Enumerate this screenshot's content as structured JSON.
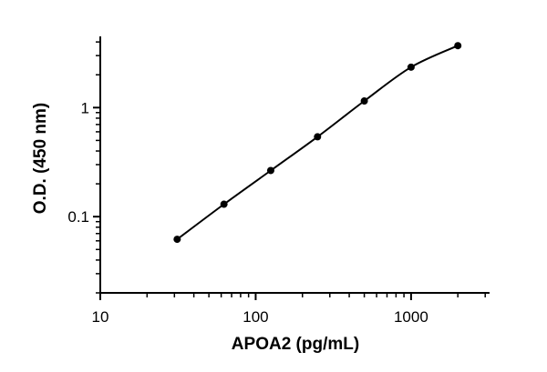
{
  "chart_data": {
    "type": "scatter",
    "title": "",
    "xlabel": "APOA2 (pg/mL)",
    "ylabel": "O.D. (450 nm)",
    "x_scale": "log",
    "y_scale": "log",
    "xlim": [
      10,
      3200
    ],
    "ylim": [
      0.02,
      4.5
    ],
    "x_ticks": [
      10,
      100,
      1000
    ],
    "x_tick_labels": [
      "10",
      "100",
      "1000"
    ],
    "y_ticks": [
      0.1,
      1
    ],
    "y_tick_labels": [
      "0.1",
      "1"
    ],
    "grid": false,
    "legend": "none",
    "series": [
      {
        "x": [
          31.25,
          62.5,
          125,
          250,
          500,
          1000,
          2000
        ],
        "y": [
          0.062,
          0.13,
          0.265,
          0.54,
          1.15,
          2.35,
          3.7
        ],
        "fit_curve": true
      }
    ]
  }
}
